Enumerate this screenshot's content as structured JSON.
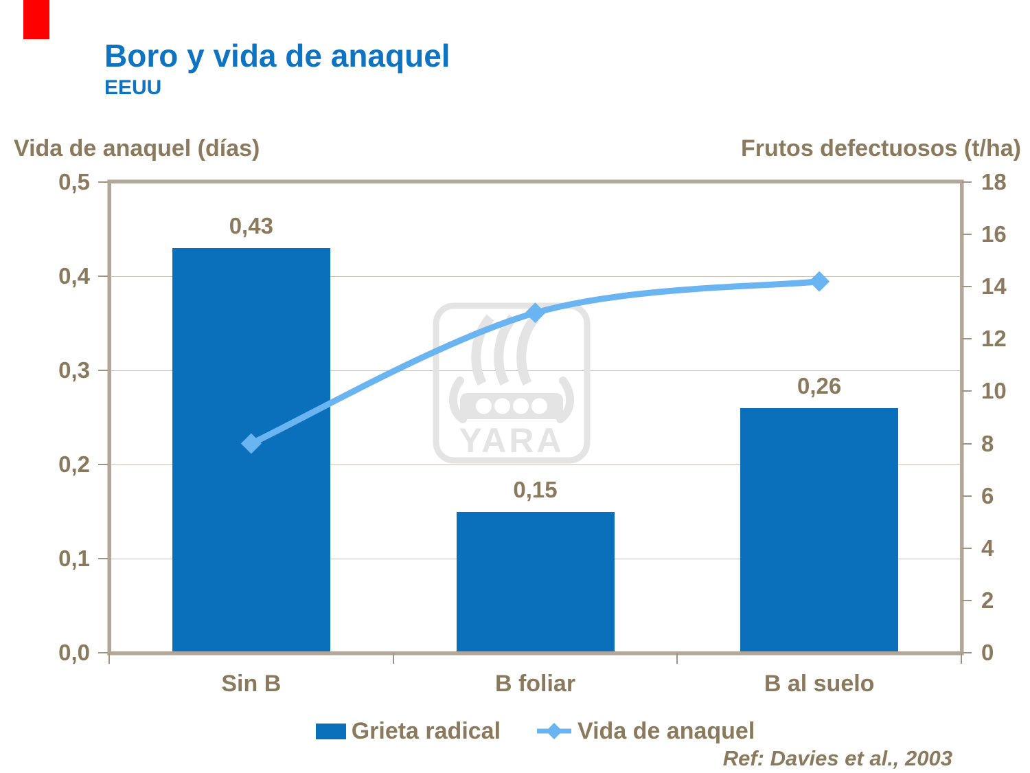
{
  "slide": {
    "title": "Boro y vida de anaquel",
    "subtitle": "EEUU",
    "reference": "Ref: Davies et al., 2003",
    "watermark_text": "YARA"
  },
  "colors": {
    "title_blue": "#0e74c2",
    "bar_blue": "#0a70bc",
    "line_blue": "#6ab4f2",
    "text_brown": "#8a795c",
    "axis_border": "#b3a79a",
    "gridline": "#cbc1b3",
    "tick": "#a2937f",
    "red_corner_mark": "#fe0000",
    "watermark_gray": "#e4e4e4"
  },
  "chart_data": {
    "type": "combo: bar + line (dual axis)",
    "categories": [
      "Sin B",
      "B foliar",
      "B al suelo"
    ],
    "series": [
      {
        "name": "Grieta radical",
        "type": "bar",
        "axis": "left",
        "values": [
          0.43,
          0.15,
          0.26
        ],
        "value_labels": [
          "0,43",
          "0,15",
          "0,26"
        ]
      },
      {
        "name": "Vida de anaquel",
        "type": "line",
        "axis": "right",
        "marker": "diamond",
        "values": [
          8,
          13,
          14.2
        ]
      }
    ],
    "left_axis": {
      "title": "Vida de anaquel (días)",
      "min": 0,
      "max": 0.5,
      "step": 0.1,
      "tick_labels": [
        "0,0",
        "0,1",
        "0,2",
        "0,3",
        "0,4",
        "0,5"
      ]
    },
    "right_axis": {
      "title": "Frutos defectuosos (t/ha)",
      "min": 0,
      "max": 18,
      "step": 2,
      "tick_labels": [
        "0",
        "2",
        "4",
        "6",
        "8",
        "10",
        "12",
        "14",
        "16",
        "18"
      ]
    },
    "grid": "horizontal gridlines at left-axis steps",
    "legend_position": "bottom-center"
  }
}
